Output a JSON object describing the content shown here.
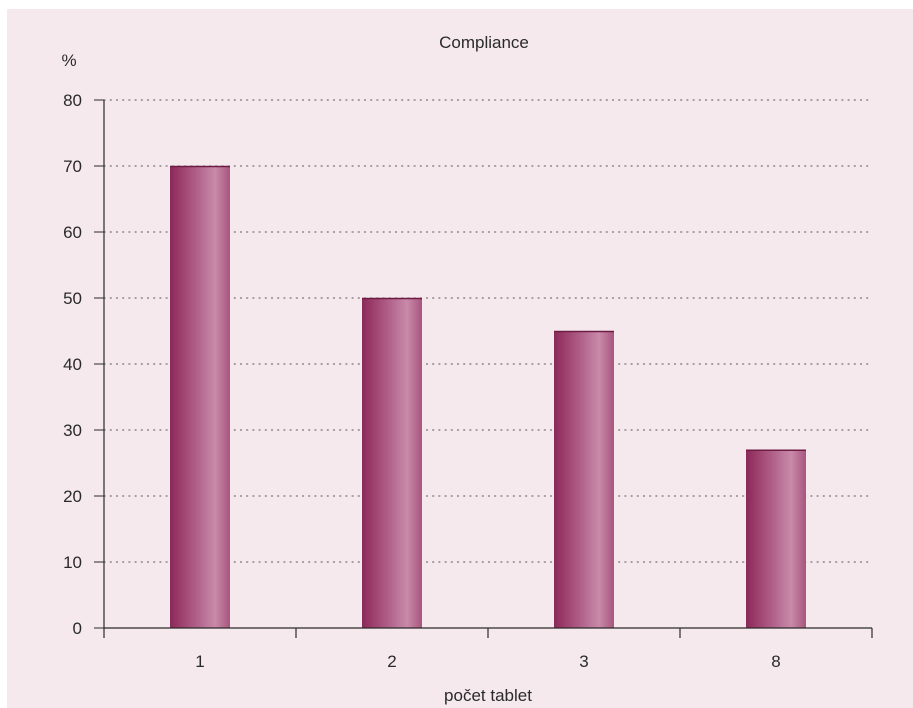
{
  "chart_data": {
    "type": "bar",
    "title": "Compliance",
    "xlabel": "počet tablet",
    "ylabel": "%",
    "categories": [
      "1",
      "2",
      "3",
      "8"
    ],
    "values": [
      70,
      50,
      45,
      27
    ],
    "ylim": [
      0,
      80
    ],
    "yticks": [
      0,
      10,
      20,
      30,
      40,
      50,
      60,
      70,
      80
    ],
    "grid": true,
    "legend": "none",
    "colors": {
      "background": "#f5e9ee",
      "bar_dark": "#8e2f5c",
      "bar_light": "#c98aa8",
      "axis": "#2a2a2a",
      "grid": "#555555"
    }
  }
}
